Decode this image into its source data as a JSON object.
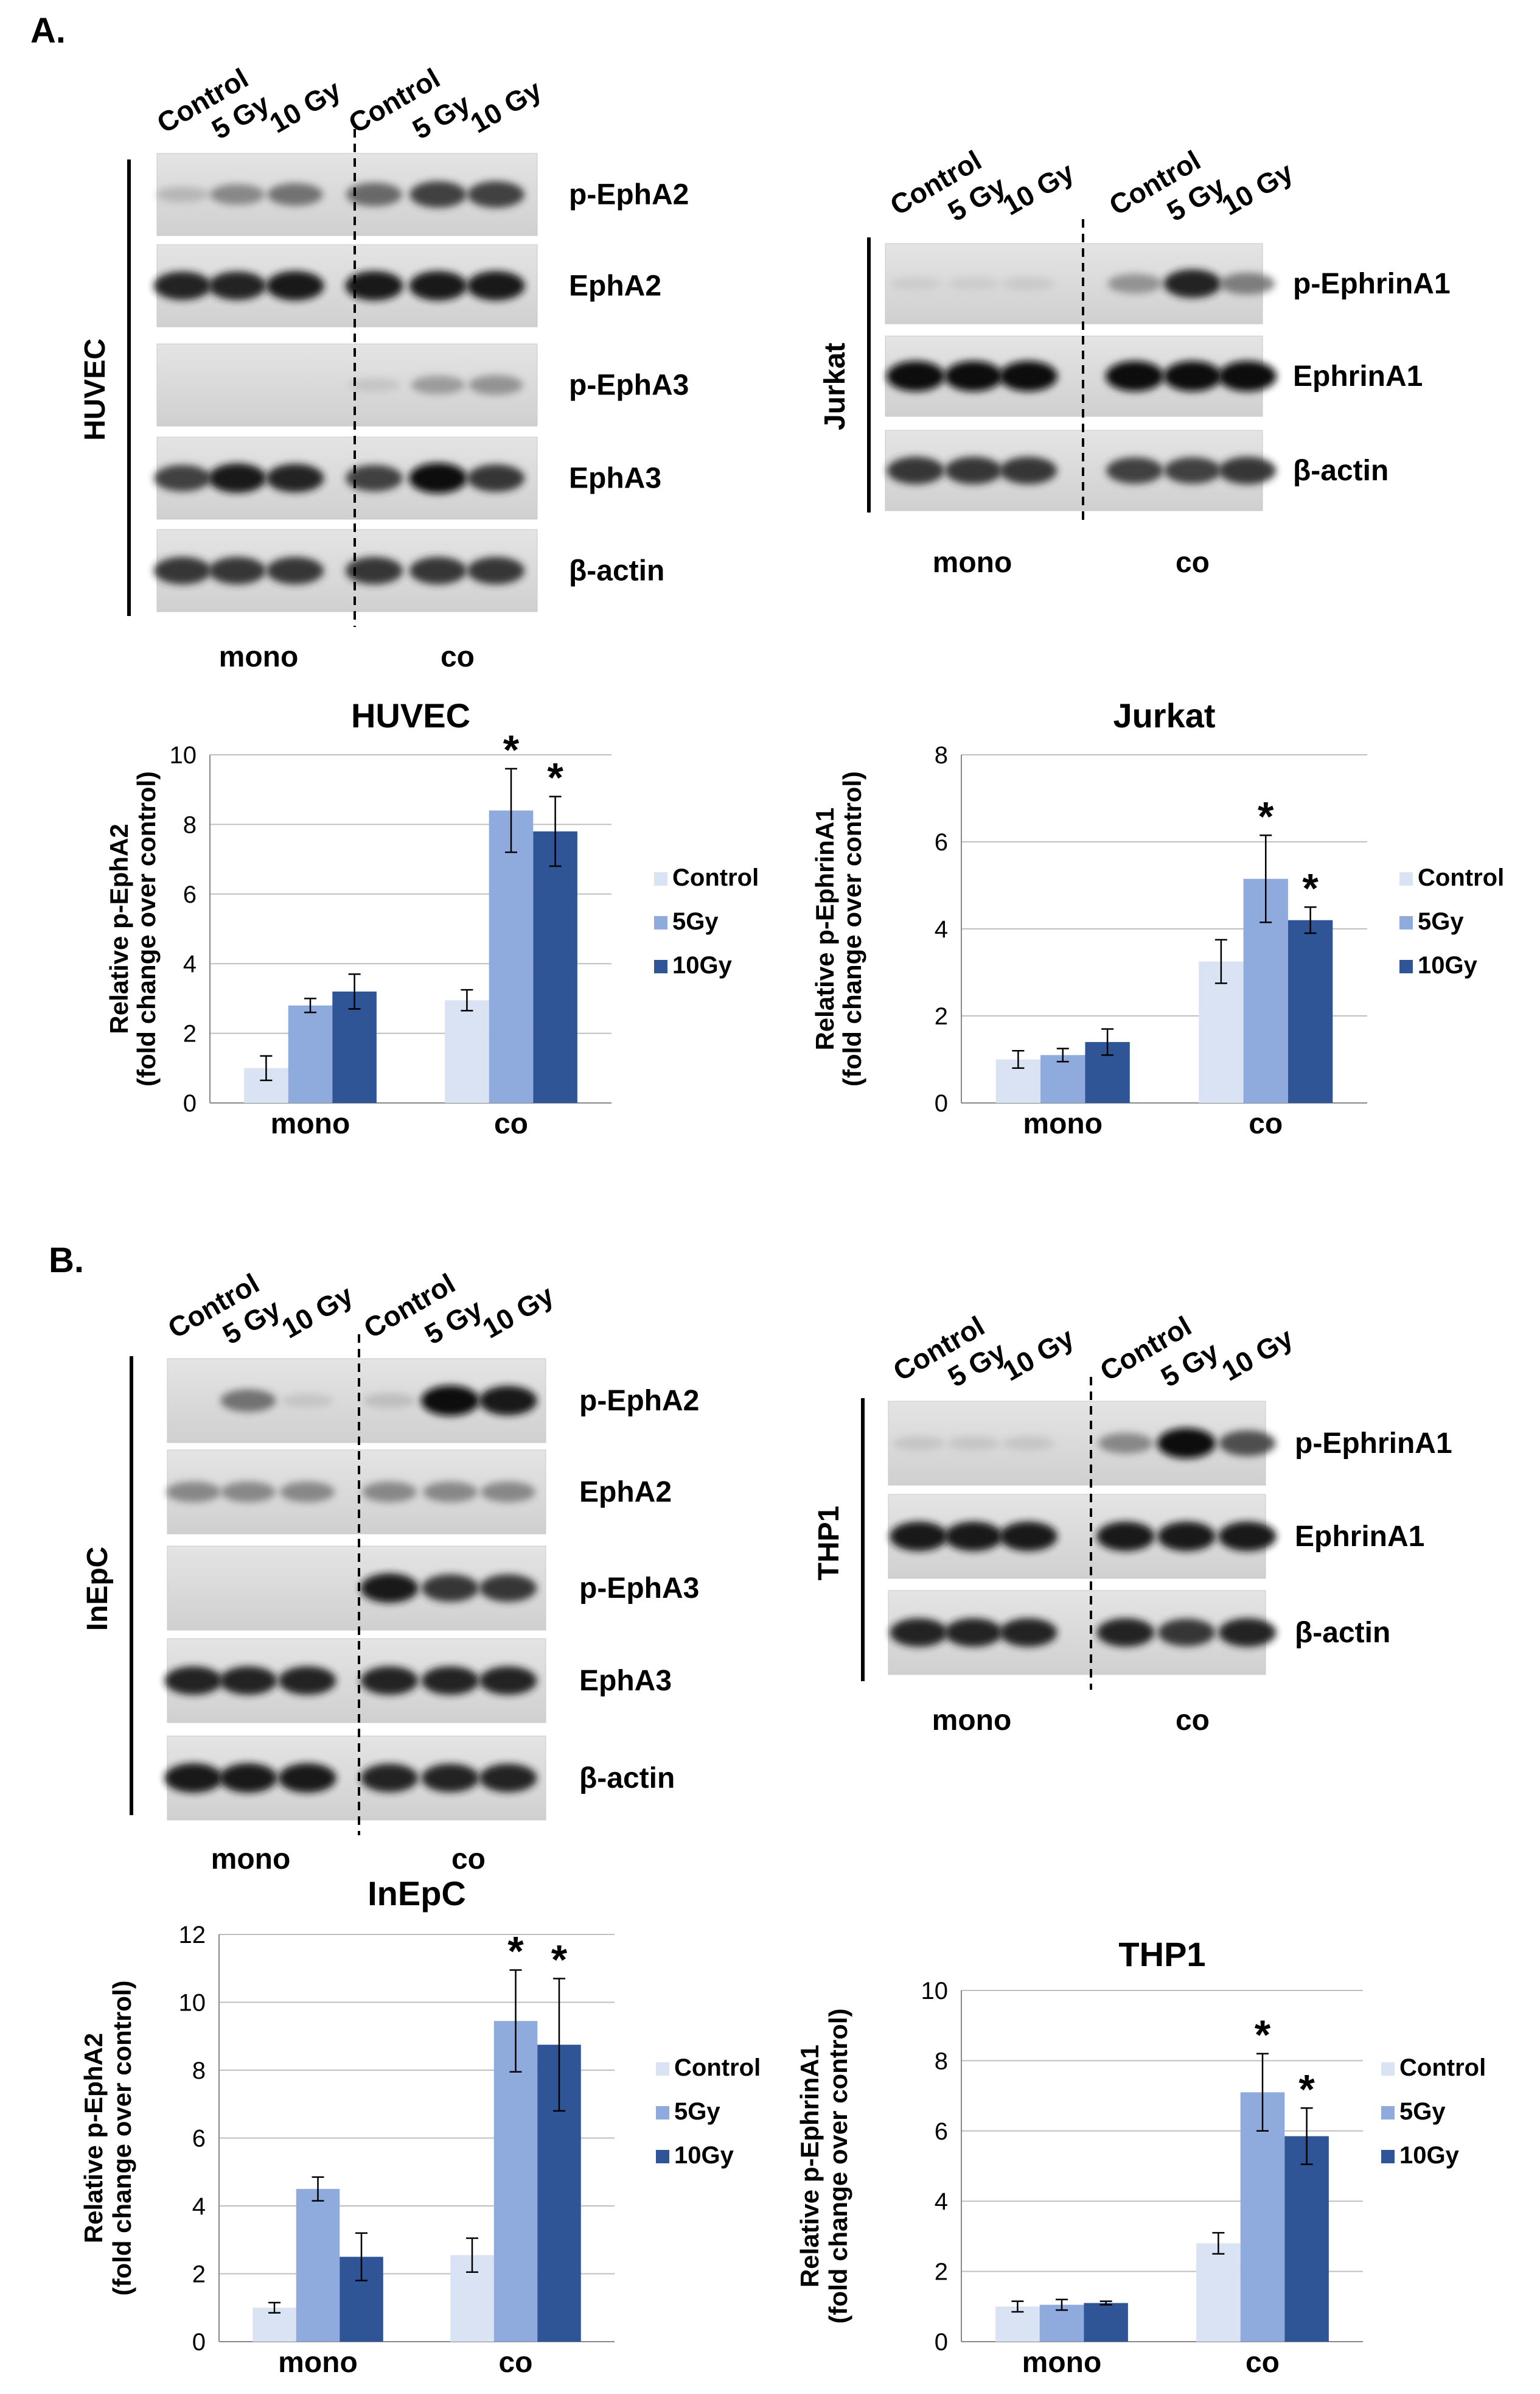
{
  "panels": [
    {
      "label": "A.",
      "lx": 50,
      "ly": 70
    },
    {
      "label": "B.",
      "lx": 80,
      "ly": 2090
    }
  ],
  "blots": [
    {
      "cell": "HUVEC",
      "lanes": [
        "Control",
        "5 Gy",
        "10 Gy",
        "Control",
        "5 Gy",
        "10 Gy"
      ],
      "rows": [
        {
          "name": "p-EphA2",
          "intensity": [
            0.25,
            0.5,
            0.6,
            0.65,
            0.8,
            0.8
          ]
        },
        {
          "name": "EphA2",
          "intensity": [
            0.9,
            0.9,
            0.95,
            0.95,
            0.95,
            0.95
          ]
        },
        {
          "name": "p-EphA3",
          "intensity": [
            0,
            0,
            0,
            0.15,
            0.4,
            0.45
          ]
        },
        {
          "name": "EphA3",
          "intensity": [
            0.8,
            0.95,
            0.9,
            0.8,
            1,
            0.85
          ]
        },
        {
          "name": "β-actin",
          "intensity": [
            0.85,
            0.85,
            0.85,
            0.85,
            0.85,
            0.85
          ]
        }
      ],
      "groups": [
        "mono",
        "co"
      ]
    },
    {
      "cell": "Jurkat",
      "lanes": [
        "Control",
        "5 Gy",
        "10 Gy",
        "Control",
        "5 Gy",
        "10 Gy"
      ],
      "rows": [
        {
          "name": "p-EphrinA1",
          "intensity": [
            0.1,
            0.1,
            0.12,
            0.45,
            0.9,
            0.55
          ]
        },
        {
          "name": "EphrinA1",
          "intensity": [
            1,
            1,
            1,
            1,
            1,
            1
          ]
        },
        {
          "name": "β-actin",
          "intensity": [
            0.85,
            0.85,
            0.85,
            0.8,
            0.8,
            0.85
          ]
        }
      ],
      "groups": [
        "mono",
        "co"
      ]
    },
    {
      "cell": "InEpC",
      "lanes": [
        "Control",
        "5 Gy",
        "10 Gy",
        "Control",
        "5 Gy",
        "10 Gy"
      ],
      "rows": [
        {
          "name": "p-EphA2",
          "intensity": [
            0,
            0.6,
            0.15,
            0.2,
            1,
            0.95
          ]
        },
        {
          "name": "EphA2",
          "intensity": [
            0.5,
            0.5,
            0.5,
            0.5,
            0.5,
            0.5
          ]
        },
        {
          "name": "p-EphA3",
          "intensity": [
            0,
            0,
            0,
            0.95,
            0.85,
            0.85
          ]
        },
        {
          "name": "EphA3",
          "intensity": [
            0.9,
            0.9,
            0.9,
            0.9,
            0.9,
            0.9
          ]
        },
        {
          "name": "β-actin",
          "intensity": [
            0.95,
            0.95,
            0.95,
            0.9,
            0.9,
            0.9
          ]
        }
      ],
      "groups": [
        "mono",
        "co"
      ]
    },
    {
      "cell": "THP1",
      "lanes": [
        "Control",
        "5 Gy",
        "10 Gy",
        "Control",
        "5 Gy",
        "10 Gy"
      ],
      "rows": [
        {
          "name": "p-EphrinA1",
          "intensity": [
            0.15,
            0.15,
            0.15,
            0.5,
            1,
            0.75
          ]
        },
        {
          "name": "EphrinA1",
          "intensity": [
            0.95,
            0.95,
            0.95,
            0.95,
            0.95,
            0.95
          ]
        },
        {
          "name": "β-actin",
          "intensity": [
            0.9,
            0.9,
            0.9,
            0.9,
            0.85,
            0.9
          ]
        }
      ],
      "groups": [
        "mono",
        "co"
      ]
    }
  ],
  "colors": {
    "control": "#dae3f3",
    "gy5": "#8faadc",
    "gy10": "#2f5597",
    "grid": "#bfbfbf"
  },
  "chart_data": [
    {
      "type": "bar",
      "title": "HUVEC",
      "ylabel": "Relative p-EphA2\n(fold change over control)",
      "categories": [
        "mono",
        "co"
      ],
      "ylim": [
        0,
        10
      ],
      "yticks": [
        0,
        2,
        4,
        6,
        8,
        10
      ],
      "grid": true,
      "legend": "right",
      "series": [
        {
          "name": "Control",
          "values": [
            1.0,
            2.95
          ],
          "errors": [
            0.35,
            0.3
          ]
        },
        {
          "name": "5Gy",
          "values": [
            2.8,
            8.4
          ],
          "errors": [
            0.2,
            1.2
          ]
        },
        {
          "name": "10Gy",
          "values": [
            3.2,
            7.8
          ],
          "errors": [
            0.5,
            1.0
          ]
        }
      ],
      "significance": [
        [
          0,
          0,
          0
        ],
        [
          0,
          1,
          1
        ]
      ],
      "star": "*"
    },
    {
      "type": "bar",
      "title": "Jurkat",
      "ylabel": "Relative p-EphrinA1\n(fold change over control)",
      "categories": [
        "mono",
        "co"
      ],
      "ylim": [
        0,
        8
      ],
      "yticks": [
        0,
        2,
        4,
        6,
        8
      ],
      "grid": true,
      "legend": "right",
      "series": [
        {
          "name": "Control",
          "values": [
            1.0,
            3.25
          ],
          "errors": [
            0.2,
            0.5
          ]
        },
        {
          "name": "5Gy",
          "values": [
            1.1,
            5.15
          ],
          "errors": [
            0.15,
            1.0
          ]
        },
        {
          "name": "10Gy",
          "values": [
            1.4,
            4.2
          ],
          "errors": [
            0.3,
            0.3
          ]
        }
      ],
      "significance": [
        [
          0,
          0,
          0
        ],
        [
          0,
          1,
          1
        ]
      ],
      "star": "*"
    },
    {
      "type": "bar",
      "title": "InEpC",
      "ylabel": "Relative p-EphA2\n(fold change over control)",
      "categories": [
        "mono",
        "co"
      ],
      "ylim": [
        0,
        12
      ],
      "yticks": [
        0,
        2,
        4,
        6,
        8,
        10,
        12
      ],
      "grid": true,
      "legend": "right",
      "series": [
        {
          "name": "Control",
          "values": [
            1.0,
            2.55
          ],
          "errors": [
            0.15,
            0.5
          ]
        },
        {
          "name": "5Gy",
          "values": [
            4.5,
            9.45
          ],
          "errors": [
            0.35,
            1.5
          ]
        },
        {
          "name": "10Gy",
          "values": [
            2.5,
            8.75
          ],
          "errors": [
            0.7,
            1.95
          ]
        }
      ],
      "significance": [
        [
          0,
          0,
          0
        ],
        [
          0,
          1,
          1
        ]
      ],
      "star": "*"
    },
    {
      "type": "bar",
      "title": "THP1",
      "ylabel": "Relative p-EphrinA1\n(fold change over control)",
      "categories": [
        "mono",
        "co"
      ],
      "ylim": [
        0,
        10
      ],
      "yticks": [
        0,
        2,
        4,
        6,
        8,
        10
      ],
      "grid": true,
      "legend": "right",
      "series": [
        {
          "name": "Control",
          "values": [
            1.0,
            2.8
          ],
          "errors": [
            0.15,
            0.3
          ]
        },
        {
          "name": "5Gy",
          "values": [
            1.05,
            7.1
          ],
          "errors": [
            0.15,
            1.1
          ]
        },
        {
          "name": "10Gy",
          "values": [
            1.1,
            5.85
          ],
          "errors": [
            0.05,
            0.8
          ]
        }
      ],
      "significance": [
        [
          0,
          0,
          0
        ],
        [
          0,
          1,
          1
        ]
      ],
      "star": "*"
    }
  ]
}
